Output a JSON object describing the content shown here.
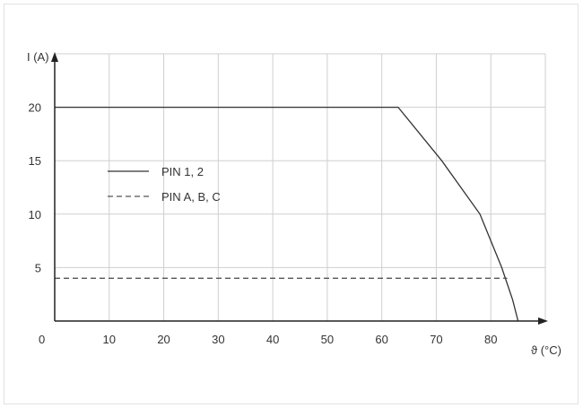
{
  "chart_data": {
    "type": "line",
    "ylabel": "I (A)",
    "xlabel": "ϑ (°C)",
    "origin_label": "0",
    "xlim": [
      0,
      90
    ],
    "ylim": [
      0,
      25
    ],
    "x_ticks": [
      10,
      20,
      30,
      40,
      50,
      60,
      70,
      80
    ],
    "y_ticks": [
      5,
      10,
      15,
      20
    ],
    "grid": true,
    "legend_position": "left-middle",
    "series": [
      {
        "name": "PIN 1, 2",
        "style": "solid",
        "color": "#333333",
        "points": [
          [
            0,
            20
          ],
          [
            63,
            20
          ],
          [
            71,
            15
          ],
          [
            78,
            10
          ],
          [
            82,
            5
          ],
          [
            84,
            2
          ],
          [
            85,
            0
          ]
        ]
      },
      {
        "name": "PIN A, B, C",
        "style": "dashed",
        "color": "#555555",
        "points": [
          [
            0,
            4
          ],
          [
            83,
            4
          ]
        ]
      }
    ]
  }
}
